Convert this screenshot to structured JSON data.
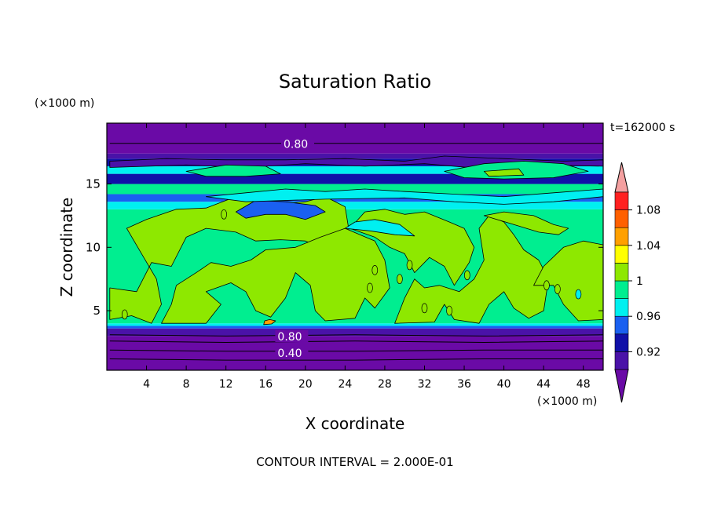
{
  "chart_data": {
    "type": "heatmap",
    "title": "Saturation Ratio",
    "time_label": "t=162000 s",
    "xlabel": "X coordinate",
    "ylabel": "Z coordinate",
    "x_unit": "(×1000 m)",
    "y_unit": "(×1000 m)",
    "x_ticks": [
      4,
      8,
      12,
      16,
      20,
      24,
      28,
      32,
      36,
      40,
      44,
      48
    ],
    "y_ticks": [
      5,
      10,
      15
    ],
    "xlim": [
      0,
      50
    ],
    "ylim": [
      0.3,
      19.8
    ],
    "footer": "CONTOUR INTERVAL = 2.000E-01",
    "contour_labels": [
      {
        "text": "0.80",
        "x": 17.8,
        "z": 18.1
      },
      {
        "text": "0.80",
        "x": 17.2,
        "z": 2.9
      },
      {
        "text": "0.40",
        "x": 17.2,
        "z": 1.6
      }
    ],
    "colorbar": {
      "tick_labels": [
        "0.92",
        "0.96",
        "1",
        "1.04",
        "1.08"
      ],
      "levels": [
        {
          "max": 0.9,
          "color": "#6a0aa6"
        },
        {
          "max": 0.92,
          "color": "#4a12a8"
        },
        {
          "max": 0.94,
          "color": "#1010a8"
        },
        {
          "max": 0.96,
          "color": "#1a60f0"
        },
        {
          "max": 0.98,
          "color": "#00f0f0"
        },
        {
          "max": 1.0,
          "color": "#00ee90"
        },
        {
          "max": 1.02,
          "color": "#8ee800"
        },
        {
          "max": 1.04,
          "color": "#ffff00"
        },
        {
          "max": 1.06,
          "color": "#ffa000"
        },
        {
          "max": 1.08,
          "color": "#ff6000"
        },
        {
          "max": 1.1,
          "color": "#ff2020"
        },
        {
          "max": 99,
          "color": "#f4a0a0"
        }
      ]
    },
    "bands": [
      {
        "z0": 0.3,
        "z1": 3.0,
        "value": 0.8
      },
      {
        "z0": 3.0,
        "z1": 3.6,
        "value": 0.91
      },
      {
        "z0": 3.6,
        "z1": 3.8,
        "value": 0.95
      },
      {
        "z0": 3.8,
        "z1": 4.0,
        "value": 0.97
      },
      {
        "z0": 4.0,
        "z1": 12.0,
        "value": 0.99
      },
      {
        "z0": 12.0,
        "z1": 13.0,
        "value": 0.99
      },
      {
        "z0": 13.0,
        "z1": 13.6,
        "value": 0.97
      },
      {
        "z0": 13.6,
        "z1": 14.2,
        "value": 0.95
      },
      {
        "z0": 14.2,
        "z1": 15.0,
        "value": 0.99
      },
      {
        "z0": 15.0,
        "z1": 15.8,
        "value": 0.93
      },
      {
        "z0": 15.8,
        "z1": 16.4,
        "value": 0.97
      },
      {
        "z0": 16.4,
        "z1": 17.0,
        "value": 0.93
      },
      {
        "z0": 17.0,
        "z1": 17.4,
        "value": 0.91
      },
      {
        "z0": 17.4,
        "z1": 19.8,
        "value": 0.8
      }
    ],
    "regions": [
      {
        "value": 1.01,
        "pts": [
          [
            0.3,
            4.3
          ],
          [
            2.5,
            4.6
          ],
          [
            4.5,
            4.0
          ],
          [
            5.5,
            5.5
          ],
          [
            5.0,
            7.5
          ],
          [
            3.5,
            9.5
          ],
          [
            2.0,
            11.5
          ],
          [
            4.0,
            12.2
          ],
          [
            7.0,
            13.0
          ],
          [
            10.0,
            13.1
          ],
          [
            13.0,
            14.0
          ],
          [
            15.0,
            13.8
          ],
          [
            17.0,
            13.4
          ],
          [
            20.0,
            13.6
          ],
          [
            22.0,
            14.0
          ],
          [
            24.0,
            13.2
          ],
          [
            24.5,
            10.8
          ],
          [
            23.0,
            9.5
          ],
          [
            20.0,
            10.5
          ],
          [
            17.5,
            10.6
          ],
          [
            15.0,
            10.5
          ],
          [
            13.0,
            11.2
          ],
          [
            10.0,
            11.5
          ],
          [
            8.0,
            10.8
          ],
          [
            6.5,
            8.5
          ],
          [
            4.5,
            8.8
          ],
          [
            3.0,
            6.5
          ],
          [
            0.3,
            6.8
          ]
        ]
      },
      {
        "value": 1.01,
        "pts": [
          [
            5.5,
            4.0
          ],
          [
            10.0,
            4.0
          ],
          [
            11.5,
            5.5
          ],
          [
            10.0,
            6.5
          ],
          [
            12.5,
            7.2
          ],
          [
            14.0,
            6.5
          ],
          [
            15.0,
            5.0
          ],
          [
            16.5,
            4.5
          ],
          [
            18.0,
            6.0
          ],
          [
            19.0,
            8.0
          ],
          [
            20.5,
            7.0
          ],
          [
            21.0,
            5.0
          ],
          [
            22.0,
            4.2
          ],
          [
            25.0,
            4.4
          ],
          [
            26.0,
            6.0
          ],
          [
            27.0,
            5.2
          ],
          [
            28.5,
            6.8
          ],
          [
            28.0,
            9.0
          ],
          [
            27.0,
            10.5
          ],
          [
            25.5,
            11.0
          ],
          [
            24.0,
            11.5
          ],
          [
            21.5,
            10.8
          ],
          [
            19.0,
            10.0
          ],
          [
            16.0,
            9.8
          ],
          [
            14.5,
            9.0
          ],
          [
            12.5,
            8.5
          ],
          [
            10.5,
            8.8
          ],
          [
            9.0,
            8.0
          ],
          [
            7.0,
            7.0
          ],
          [
            6.5,
            5.5
          ]
        ]
      },
      {
        "value": 1.01,
        "pts": [
          [
            24.5,
            11.5
          ],
          [
            26.0,
            12.8
          ],
          [
            28.0,
            13.0
          ],
          [
            30.0,
            12.6
          ],
          [
            32.0,
            12.8
          ],
          [
            34.5,
            12.0
          ],
          [
            36.0,
            11.5
          ],
          [
            37.0,
            10.0
          ],
          [
            36.5,
            8.8
          ],
          [
            35.0,
            7.0
          ],
          [
            34.0,
            8.5
          ],
          [
            32.5,
            9.2
          ],
          [
            31.0,
            8.0
          ],
          [
            30.0,
            9.5
          ],
          [
            28.5,
            10.0
          ],
          [
            27.0,
            10.8
          ]
        ]
      },
      {
        "value": 1.01,
        "pts": [
          [
            29.0,
            4.0
          ],
          [
            33.0,
            4.1
          ],
          [
            34.0,
            5.5
          ],
          [
            35.0,
            4.3
          ],
          [
            37.5,
            4.0
          ],
          [
            38.5,
            5.5
          ],
          [
            40.0,
            6.5
          ],
          [
            41.0,
            5.2
          ],
          [
            42.5,
            4.4
          ],
          [
            44.0,
            5.0
          ],
          [
            44.5,
            7.5
          ],
          [
            43.5,
            9.0
          ],
          [
            42.0,
            9.8
          ],
          [
            41.0,
            11.0
          ],
          [
            40.0,
            12.0
          ],
          [
            38.5,
            12.5
          ],
          [
            37.5,
            11.5
          ],
          [
            38.0,
            9.0
          ],
          [
            37.0,
            7.5
          ],
          [
            35.5,
            6.5
          ],
          [
            33.5,
            7.0
          ],
          [
            32.0,
            6.8
          ],
          [
            31.0,
            7.5
          ],
          [
            30.0,
            6.0
          ]
        ]
      },
      {
        "value": 1.01,
        "pts": [
          [
            43.0,
            7.0
          ],
          [
            44.0,
            8.5
          ],
          [
            46.0,
            10.0
          ],
          [
            48.0,
            10.5
          ],
          [
            50.0,
            10.2
          ],
          [
            50.0,
            4.3
          ],
          [
            47.5,
            4.2
          ],
          [
            46.0,
            5.5
          ],
          [
            45.0,
            7.0
          ]
        ]
      },
      {
        "value": 1.01,
        "pts": [
          [
            38.0,
            12.5
          ],
          [
            40.0,
            12.8
          ],
          [
            43.0,
            12.5
          ],
          [
            45.0,
            11.8
          ],
          [
            46.5,
            11.5
          ],
          [
            45.5,
            11.0
          ],
          [
            43.5,
            11.2
          ],
          [
            41.0,
            11.8
          ]
        ]
      },
      {
        "value": 0.95,
        "pts": [
          [
            13.0,
            12.8
          ],
          [
            15.0,
            13.7
          ],
          [
            18.0,
            13.6
          ],
          [
            21.0,
            13.3
          ],
          [
            22.0,
            12.8
          ],
          [
            20.0,
            12.2
          ],
          [
            18.0,
            12.6
          ],
          [
            16.0,
            12.6
          ],
          [
            14.0,
            12.3
          ]
        ]
      },
      {
        "value": 0.97,
        "pts": [
          [
            24.0,
            11.5
          ],
          [
            26.5,
            11.3
          ],
          [
            29.0,
            11.0
          ],
          [
            31.0,
            10.9
          ],
          [
            29.5,
            11.8
          ],
          [
            27.0,
            12.2
          ],
          [
            25.0,
            12.0
          ]
        ]
      },
      {
        "value": 0.97,
        "pts": [
          [
            10.0,
            14.0
          ],
          [
            14.0,
            14.3
          ],
          [
            18.0,
            14.6
          ],
          [
            22.0,
            14.4
          ],
          [
            26.0,
            14.6
          ],
          [
            30.0,
            14.4
          ],
          [
            35.0,
            14.2
          ],
          [
            40.0,
            14.0
          ],
          [
            45.0,
            14.3
          ],
          [
            50.0,
            14.6
          ],
          [
            50.0,
            14.0
          ],
          [
            45.0,
            13.6
          ],
          [
            40.0,
            13.4
          ],
          [
            35.0,
            13.6
          ],
          [
            30.0,
            13.9
          ],
          [
            22.0,
            13.8
          ],
          [
            14.0,
            13.6
          ]
        ]
      },
      {
        "value": 0.91,
        "pts": [
          [
            0.3,
            16.8
          ],
          [
            6.0,
            17.0
          ],
          [
            12.0,
            16.9
          ],
          [
            18.0,
            16.9
          ],
          [
            24.0,
            17.0
          ],
          [
            30.0,
            16.8
          ],
          [
            34.0,
            17.2
          ],
          [
            40.0,
            17.0
          ],
          [
            46.0,
            16.8
          ],
          [
            50.0,
            16.9
          ],
          [
            50.0,
            16.4
          ],
          [
            44.0,
            16.5
          ],
          [
            38.0,
            16.2
          ],
          [
            32.0,
            16.6
          ],
          [
            26.0,
            16.4
          ],
          [
            20.0,
            16.6
          ],
          [
            14.0,
            16.3
          ],
          [
            8.0,
            16.5
          ],
          [
            0.3,
            16.3
          ]
        ]
      },
      {
        "value": 0.99,
        "pts": [
          [
            34.0,
            16.0
          ],
          [
            38.0,
            16.6
          ],
          [
            42.0,
            16.8
          ],
          [
            46.0,
            16.6
          ],
          [
            48.5,
            16.0
          ],
          [
            45.0,
            15.5
          ],
          [
            40.0,
            15.4
          ],
          [
            36.0,
            15.5
          ]
        ]
      },
      {
        "value": 1.01,
        "pts": [
          [
            38.0,
            16.0
          ],
          [
            41.5,
            16.2
          ],
          [
            42.0,
            15.7
          ],
          [
            38.5,
            15.6
          ]
        ]
      },
      {
        "value": 0.99,
        "pts": [
          [
            8.0,
            16.0
          ],
          [
            12.0,
            16.5
          ],
          [
            16.0,
            16.4
          ],
          [
            17.5,
            15.8
          ],
          [
            14.0,
            15.6
          ],
          [
            10.0,
            15.6
          ]
        ]
      },
      {
        "value": 1.05,
        "pts": [
          [
            15.8,
            3.9
          ],
          [
            16.6,
            3.95
          ],
          [
            17.0,
            4.2
          ],
          [
            16.4,
            4.3
          ],
          [
            15.9,
            4.2
          ]
        ]
      }
    ],
    "contour_lines": [
      [
        [
          0.3,
          18.2
        ],
        [
          15.0,
          18.2
        ],
        [
          50.0,
          18.2
        ]
      ],
      [
        [
          0.3,
          3.1
        ],
        [
          12.0,
          3.0
        ],
        [
          25.0,
          3.1
        ],
        [
          38.0,
          3.0
        ],
        [
          50.0,
          3.1
        ]
      ],
      [
        [
          0.3,
          2.6
        ],
        [
          12.0,
          2.5
        ],
        [
          25.0,
          2.6
        ],
        [
          38.0,
          2.5
        ],
        [
          50.0,
          2.6
        ]
      ],
      [
        [
          0.3,
          1.9
        ],
        [
          12.0,
          1.8
        ],
        [
          25.0,
          1.8
        ],
        [
          38.0,
          1.9
        ],
        [
          50.0,
          1.9
        ]
      ],
      [
        [
          0.3,
          1.2
        ],
        [
          12.0,
          1.1
        ],
        [
          25.0,
          1.1
        ],
        [
          38.0,
          1.2
        ],
        [
          50.0,
          1.2
        ]
      ]
    ],
    "specks": [
      {
        "value": 1.01,
        "x": 26.5,
        "z": 6.8
      },
      {
        "value": 1.01,
        "x": 27.0,
        "z": 8.2
      },
      {
        "value": 1.01,
        "x": 29.5,
        "z": 7.5
      },
      {
        "value": 1.01,
        "x": 30.5,
        "z": 8.6
      },
      {
        "value": 1.01,
        "x": 32.0,
        "z": 5.2
      },
      {
        "value": 1.01,
        "x": 34.5,
        "z": 5.0
      },
      {
        "value": 1.01,
        "x": 36.3,
        "z": 7.8
      },
      {
        "value": 1.01,
        "x": 44.3,
        "z": 7.0
      },
      {
        "value": 1.01,
        "x": 45.4,
        "z": 6.7
      },
      {
        "value": 0.97,
        "x": 47.5,
        "z": 6.3
      },
      {
        "value": 1.01,
        "x": 1.8,
        "z": 4.7
      },
      {
        "value": 1.01,
        "x": 11.8,
        "z": 12.6
      }
    ]
  }
}
